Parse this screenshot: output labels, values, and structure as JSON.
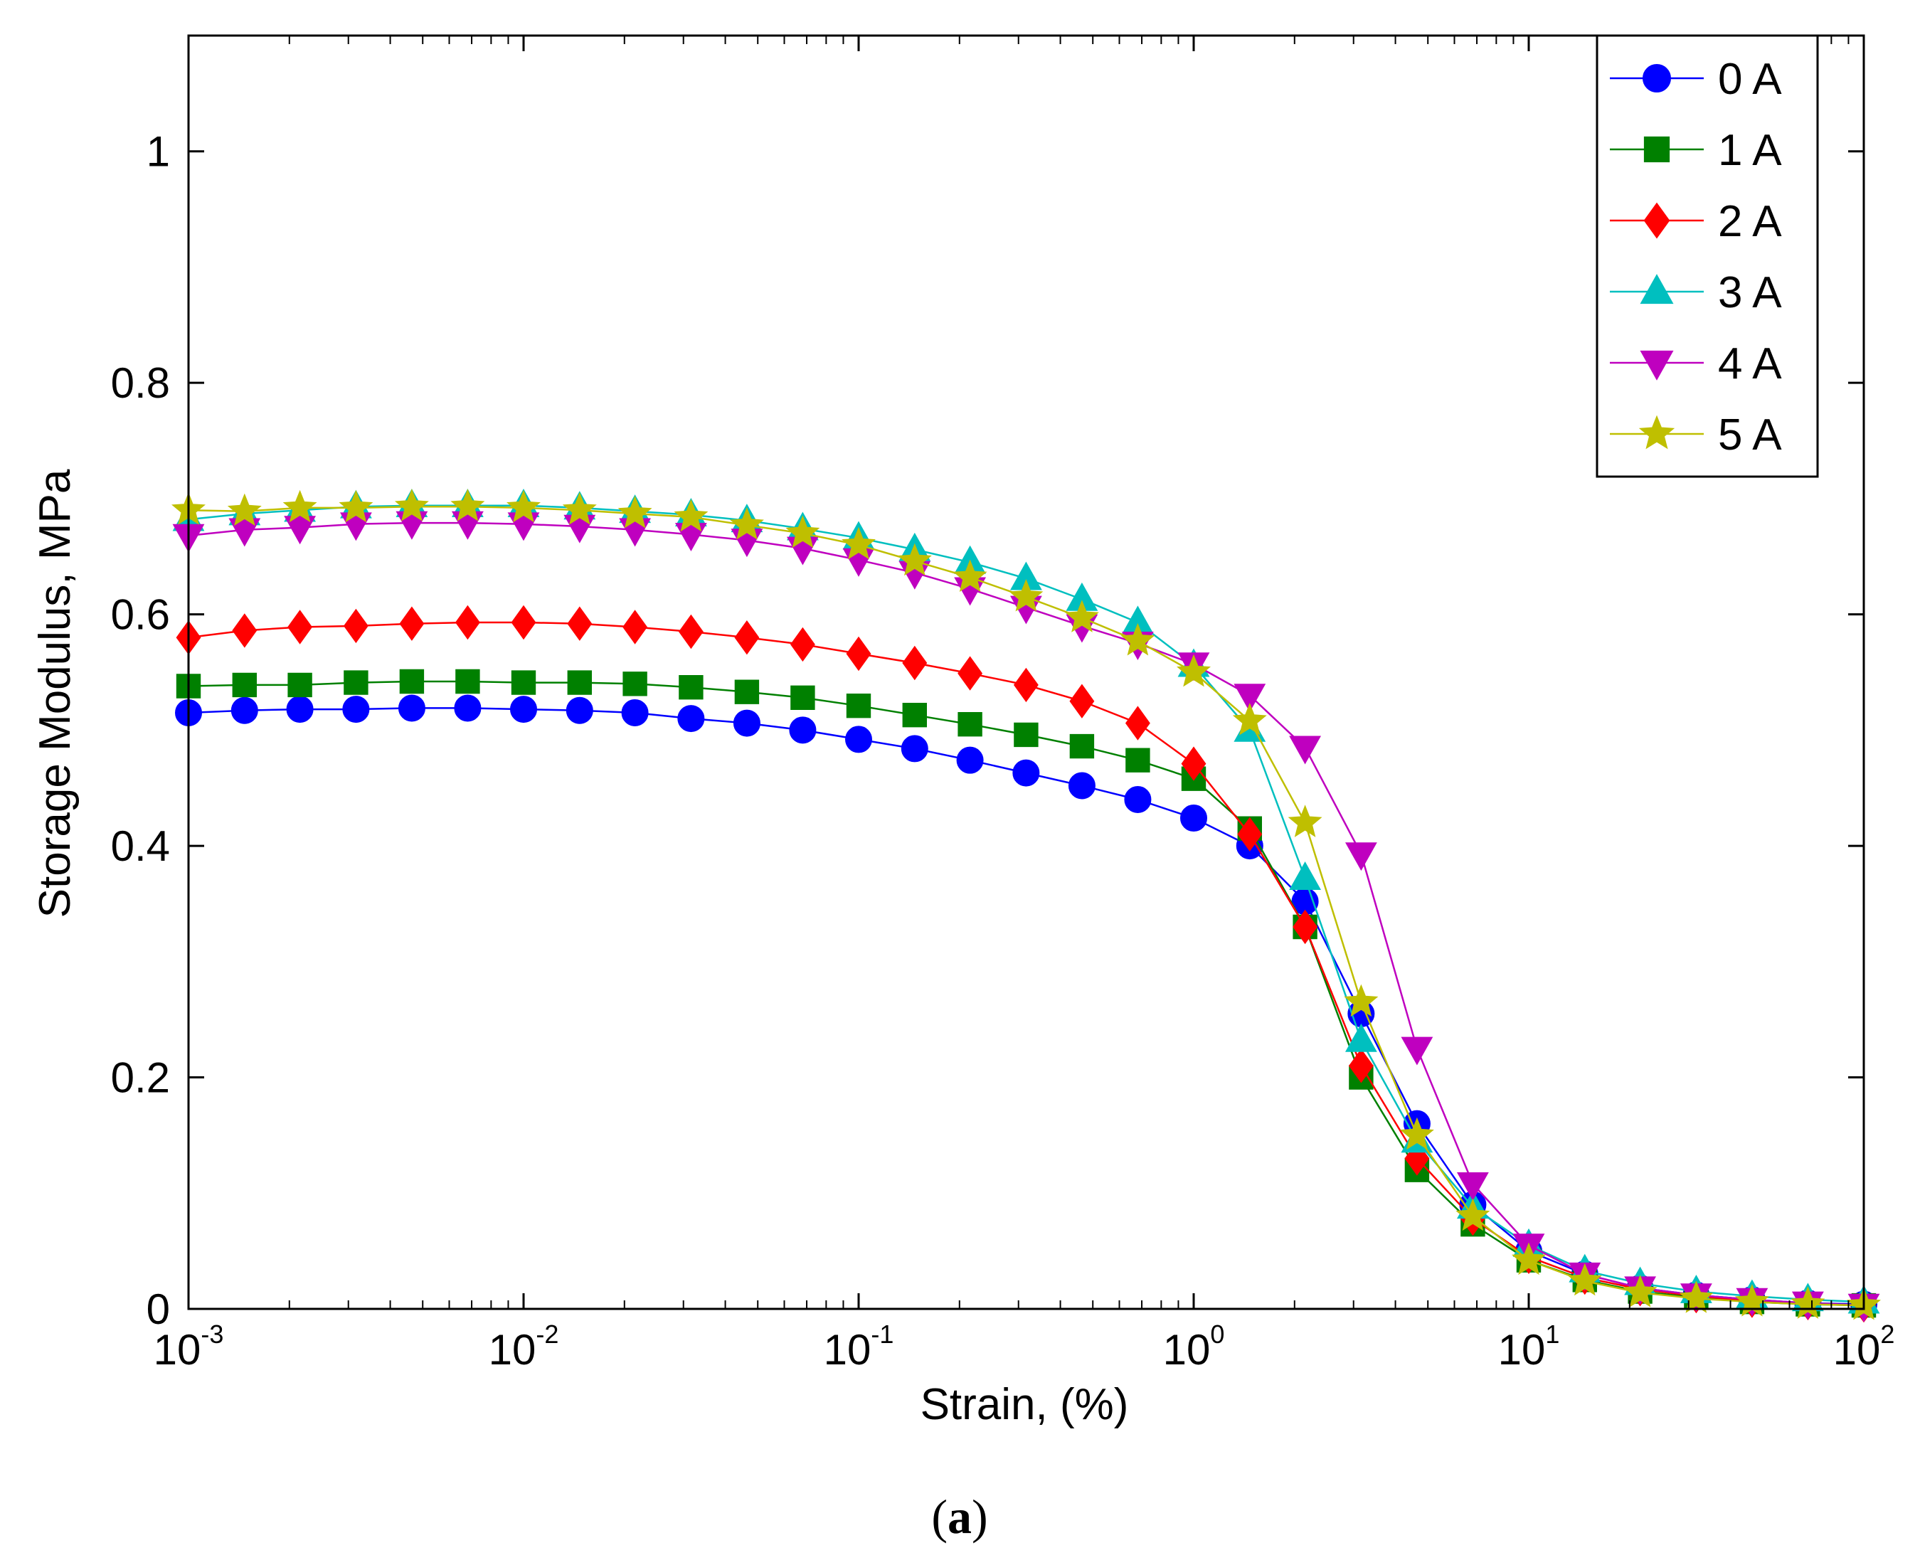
{
  "chart_data": {
    "type": "line",
    "xscale": "log",
    "xlabel": "Strain, (%)",
    "ylabel": "Storage Modulus, MPa",
    "xlim": [
      0.001,
      100
    ],
    "ylim": [
      0,
      1.1
    ],
    "xticks": [
      {
        "value": 0.001,
        "base": "10",
        "exp": "-3"
      },
      {
        "value": 0.01,
        "base": "10",
        "exp": "-2"
      },
      {
        "value": 0.1,
        "base": "10",
        "exp": "-1"
      },
      {
        "value": 1,
        "base": "10",
        "exp": "0"
      },
      {
        "value": 10,
        "base": "10",
        "exp": "1"
      },
      {
        "value": 100,
        "base": "10",
        "exp": "2"
      }
    ],
    "yticks": [
      {
        "value": 0,
        "label": "0"
      },
      {
        "value": 0.2,
        "label": "0.2"
      },
      {
        "value": 0.4,
        "label": "0.4"
      },
      {
        "value": 0.6,
        "label": "0.6"
      },
      {
        "value": 0.8,
        "label": "0.8"
      },
      {
        "value": 1,
        "label": "1"
      }
    ],
    "legend_position": "top-right",
    "grid": false,
    "x": [
      0.001,
      0.00147,
      0.00215,
      0.00316,
      0.00464,
      0.00681,
      0.01,
      0.0147,
      0.0215,
      0.0316,
      0.0464,
      0.0681,
      0.1,
      0.147,
      0.215,
      0.316,
      0.464,
      0.681,
      1.0,
      1.47,
      2.15,
      3.16,
      4.64,
      6.81,
      10.0,
      14.7,
      21.5,
      31.6,
      46.4,
      68.1,
      100.0
    ],
    "series": [
      {
        "name": "0 A",
        "color": "#0000ff",
        "marker": "circle",
        "values": [
          0.515,
          0.517,
          0.518,
          0.518,
          0.519,
          0.519,
          0.518,
          0.517,
          0.515,
          0.51,
          0.506,
          0.5,
          0.492,
          0.484,
          0.474,
          0.463,
          0.452,
          0.44,
          0.424,
          0.4,
          0.352,
          0.255,
          0.16,
          0.09,
          0.05,
          0.03,
          0.018,
          0.012,
          0.008,
          0.005,
          0.004
        ]
      },
      {
        "name": "1 A",
        "color": "#008000",
        "marker": "square",
        "values": [
          0.538,
          0.539,
          0.539,
          0.541,
          0.542,
          0.542,
          0.541,
          0.541,
          0.54,
          0.537,
          0.533,
          0.528,
          0.521,
          0.513,
          0.505,
          0.496,
          0.486,
          0.474,
          0.458,
          0.415,
          0.33,
          0.2,
          0.12,
          0.073,
          0.042,
          0.025,
          0.015,
          0.01,
          0.006,
          0.004,
          0.003
        ]
      },
      {
        "name": "2 A",
        "color": "#ff0000",
        "marker": "diamond",
        "values": [
          0.58,
          0.586,
          0.589,
          0.59,
          0.592,
          0.593,
          0.593,
          0.592,
          0.589,
          0.585,
          0.58,
          0.574,
          0.566,
          0.558,
          0.549,
          0.539,
          0.525,
          0.506,
          0.471,
          0.41,
          0.33,
          0.21,
          0.13,
          0.078,
          0.045,
          0.027,
          0.017,
          0.011,
          0.007,
          0.005,
          0.003
        ]
      },
      {
        "name": "3 A",
        "color": "#00bfbf",
        "marker": "triangle-up",
        "values": [
          0.682,
          0.687,
          0.69,
          0.693,
          0.694,
          0.694,
          0.694,
          0.692,
          0.689,
          0.686,
          0.681,
          0.674,
          0.666,
          0.656,
          0.645,
          0.631,
          0.613,
          0.593,
          0.556,
          0.5,
          0.372,
          0.232,
          0.145,
          0.088,
          0.055,
          0.033,
          0.022,
          0.015,
          0.011,
          0.008,
          0.006
        ]
      },
      {
        "name": "4 A",
        "color": "#bf00bf",
        "marker": "triangle-down",
        "values": [
          0.668,
          0.673,
          0.675,
          0.678,
          0.679,
          0.679,
          0.678,
          0.676,
          0.673,
          0.669,
          0.664,
          0.657,
          0.647,
          0.636,
          0.622,
          0.606,
          0.59,
          0.575,
          0.557,
          0.53,
          0.485,
          0.393,
          0.225,
          0.108,
          0.055,
          0.03,
          0.018,
          0.012,
          0.008,
          0.005,
          0.003
        ]
      },
      {
        "name": "5 A",
        "color": "#bfbf00",
        "marker": "star",
        "values": [
          0.69,
          0.689,
          0.692,
          0.692,
          0.693,
          0.693,
          0.692,
          0.69,
          0.687,
          0.684,
          0.677,
          0.67,
          0.66,
          0.646,
          0.632,
          0.615,
          0.597,
          0.577,
          0.55,
          0.508,
          0.42,
          0.265,
          0.15,
          0.08,
          0.042,
          0.024,
          0.014,
          0.009,
          0.006,
          0.004,
          0.003
        ]
      }
    ]
  },
  "caption": {
    "open": "(",
    "letter": "a",
    "close": ")"
  }
}
